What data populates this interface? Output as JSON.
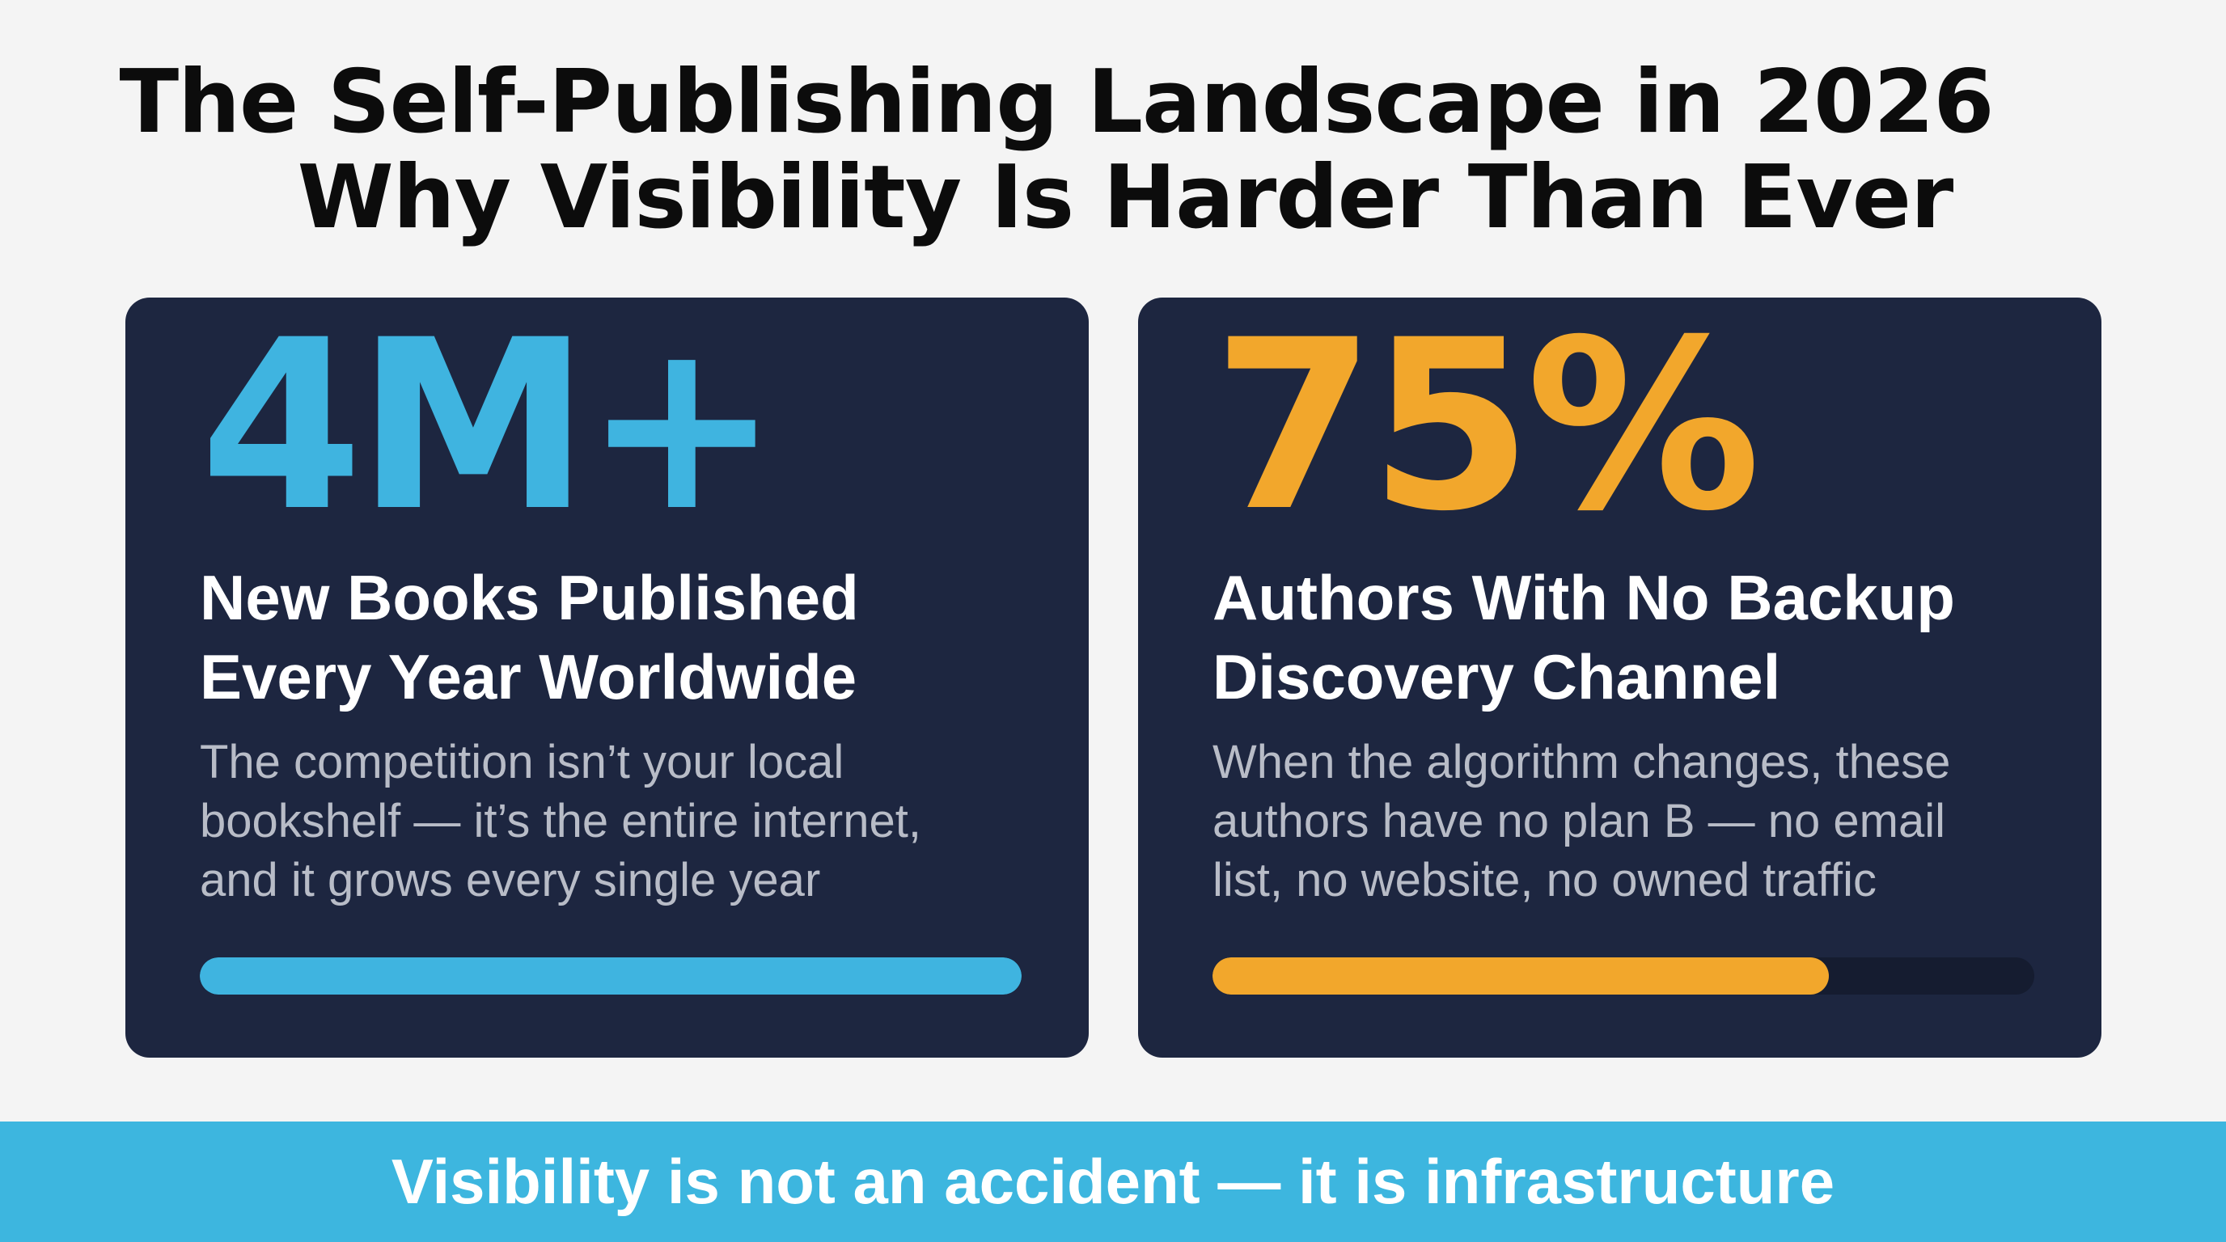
{
  "title": {
    "line1": "The Self-Publishing Landscape in 2026",
    "line2": "Why Visibility Is Harder Than Ever"
  },
  "cards": [
    {
      "stat": "4M+",
      "stat_color": "#3fb4e0",
      "headline_lines": [
        "New Books Published",
        "Every Year Worldwide"
      ],
      "description_lines": [
        "The competition isn’t your local",
        "bookshelf — it’s the entire internet,",
        "and it grows every single year"
      ],
      "progress": 1.0,
      "bar_color": "#3fb4e0"
    },
    {
      "stat": "75%",
      "stat_color": "#f2a72c",
      "headline_lines": [
        "Authors With No Backup",
        "Discovery Channel"
      ],
      "description_lines": [
        "When the algorithm changes, these",
        "authors have no plan B — no email",
        "list, no website, no owned traffic"
      ],
      "progress": 0.75,
      "bar_color": "#f2a72c"
    }
  ],
  "footer": {
    "text": "Visibility is not an accident — it is infrastructure",
    "background": "#3db6df"
  }
}
